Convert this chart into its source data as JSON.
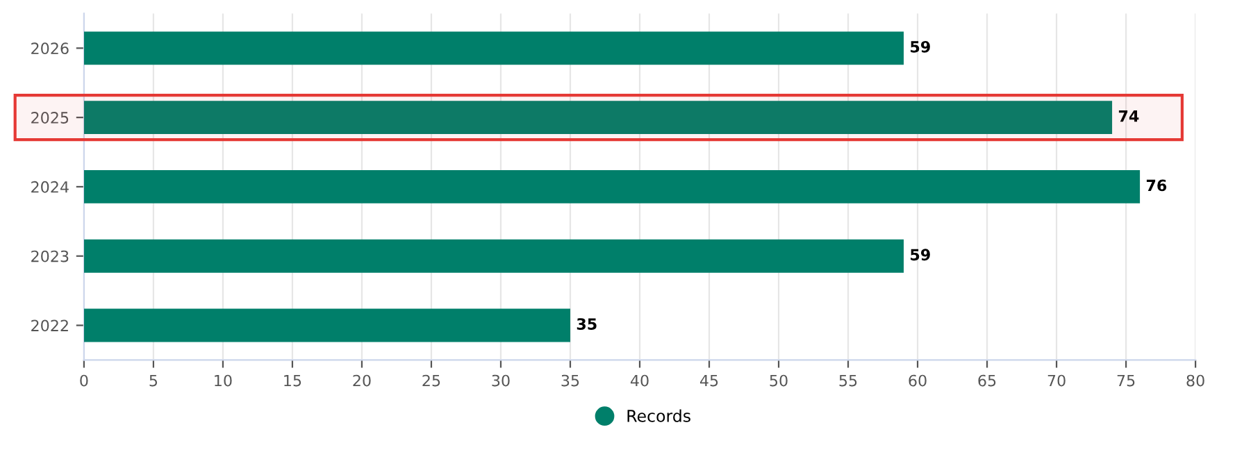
{
  "chart_data": {
    "type": "bar",
    "orientation": "horizontal",
    "categories": [
      "2026",
      "2025",
      "2024",
      "2023",
      "2022"
    ],
    "series": [
      {
        "name": "Records",
        "color": "#007f6a",
        "values": [
          59,
          74,
          76,
          59,
          35
        ]
      }
    ],
    "xlim": [
      0,
      80
    ],
    "xticks": [
      0,
      5,
      10,
      15,
      20,
      25,
      30,
      35,
      40,
      45,
      50,
      55,
      60,
      65,
      70,
      75,
      80
    ],
    "grid": "x",
    "data_labels": true,
    "legend": "bottom",
    "bands": [
      {
        "axis": "y",
        "from": "2025",
        "to": "2025",
        "color": "#e53935"
      }
    ]
  }
}
